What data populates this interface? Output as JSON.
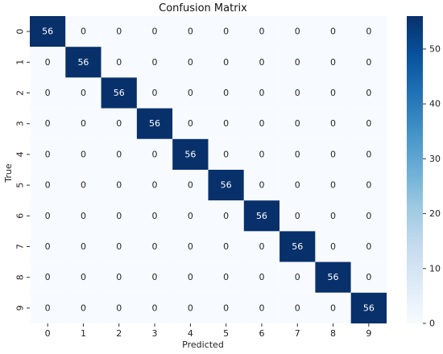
{
  "chart_data": {
    "type": "heatmap",
    "title": "Confusion Matrix",
    "xlabel": "Predicted",
    "ylabel": "True",
    "x_categories": [
      "0",
      "1",
      "2",
      "3",
      "4",
      "5",
      "6",
      "7",
      "8",
      "9"
    ],
    "y_categories": [
      "0",
      "1",
      "2",
      "3",
      "4",
      "5",
      "6",
      "7",
      "8",
      "9"
    ],
    "values": [
      [
        56,
        0,
        0,
        0,
        0,
        0,
        0,
        0,
        0,
        0
      ],
      [
        0,
        56,
        0,
        0,
        0,
        0,
        0,
        0,
        0,
        0
      ],
      [
        0,
        0,
        56,
        0,
        0,
        0,
        0,
        0,
        0,
        0
      ],
      [
        0,
        0,
        0,
        56,
        0,
        0,
        0,
        0,
        0,
        0
      ],
      [
        0,
        0,
        0,
        0,
        56,
        0,
        0,
        0,
        0,
        0
      ],
      [
        0,
        0,
        0,
        0,
        0,
        56,
        0,
        0,
        0,
        0
      ],
      [
        0,
        0,
        0,
        0,
        0,
        0,
        56,
        0,
        0,
        0
      ],
      [
        0,
        0,
        0,
        0,
        0,
        0,
        0,
        56,
        0,
        0
      ],
      [
        0,
        0,
        0,
        0,
        0,
        0,
        0,
        0,
        56,
        0
      ],
      [
        0,
        0,
        0,
        0,
        0,
        0,
        0,
        0,
        0,
        56
      ]
    ],
    "colorbar": {
      "min": 0,
      "max": 56,
      "ticks": [
        0,
        10,
        20,
        30,
        40,
        50
      ],
      "colormap": "Blues",
      "low_color": "#f7fbff",
      "high_color": "#08306b"
    },
    "annotation_colors": {
      "on_light": "#262626",
      "on_dark": "#ffffff"
    }
  }
}
